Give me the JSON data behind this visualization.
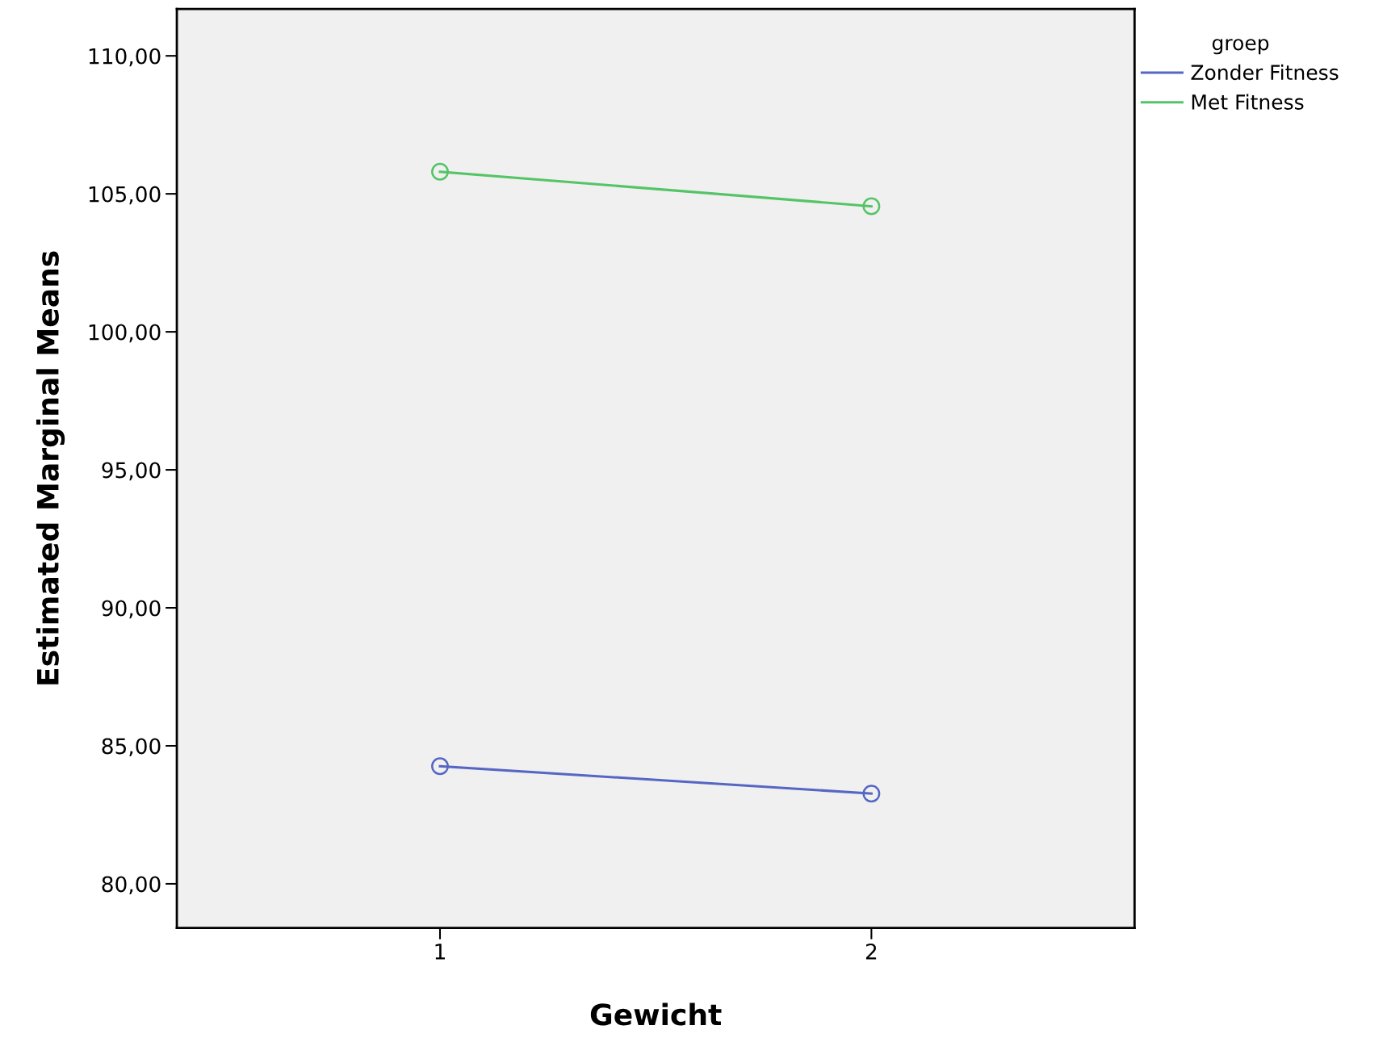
{
  "chart_data": {
    "type": "line",
    "xlabel": "Gewicht",
    "ylabel": "Estimated Marginal Means",
    "legend_title": "groep",
    "categories": [
      "1",
      "2"
    ],
    "series": [
      {
        "name": "Zonder Fitness",
        "color": "#5566c4",
        "values": [
          84.26,
          83.27
        ]
      },
      {
        "name": "Met Fitness",
        "color": "#55c466",
        "values": [
          105.8,
          104.55
        ]
      }
    ],
    "ylim": [
      78.4,
      111.7
    ],
    "yticks": [
      {
        "value": 80,
        "label": "80,00"
      },
      {
        "value": 85,
        "label": "85,00"
      },
      {
        "value": 90,
        "label": "90,00"
      },
      {
        "value": 95,
        "label": "95,00"
      },
      {
        "value": 100,
        "label": "100,00"
      },
      {
        "value": 105,
        "label": "105,00"
      },
      {
        "value": 110,
        "label": "110,00"
      }
    ],
    "marker": "circle",
    "line_style": "solid",
    "grid": false,
    "legend": "right"
  }
}
